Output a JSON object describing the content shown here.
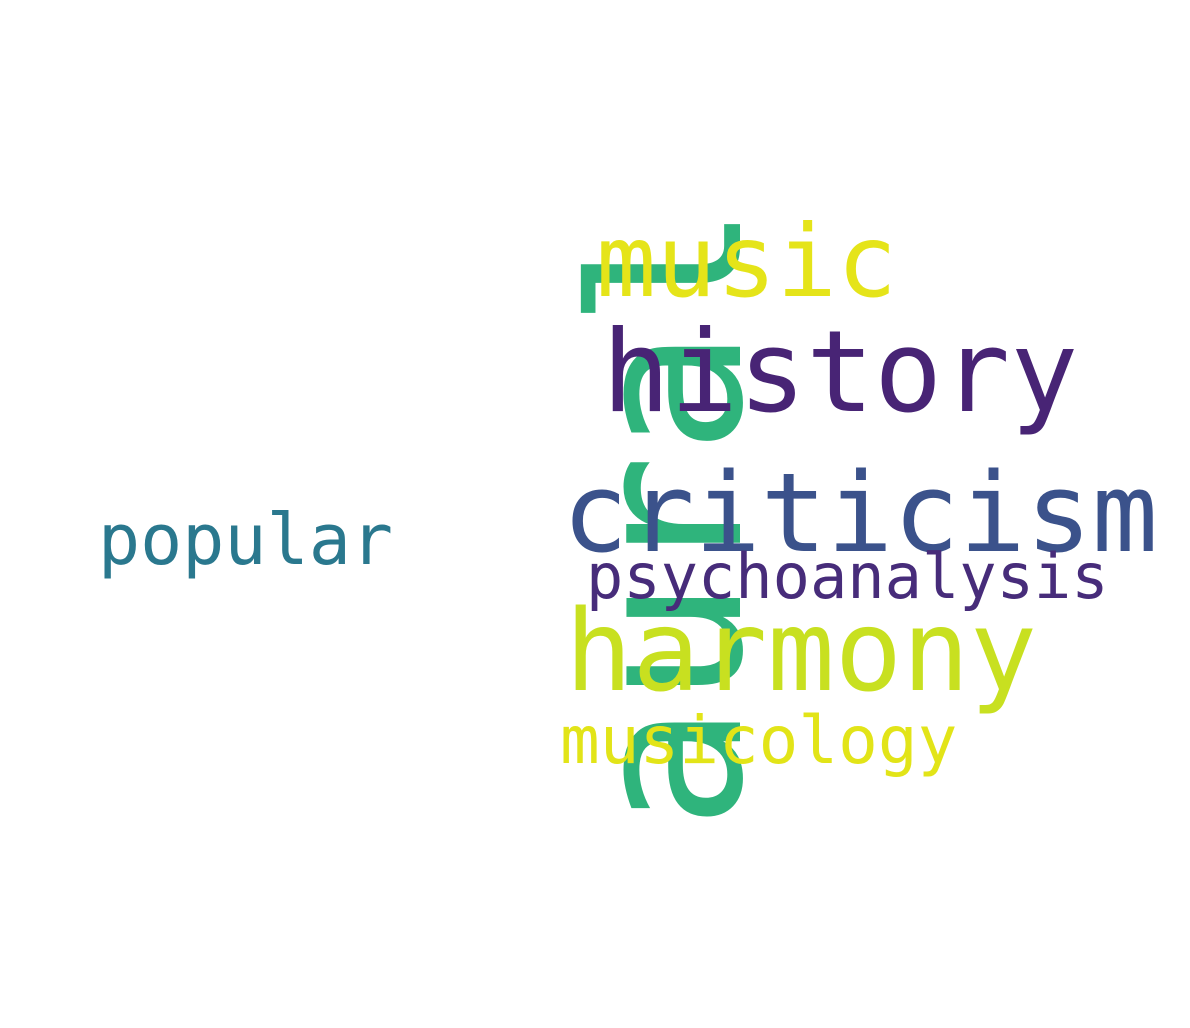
{
  "word_cloud": {
    "background": "#ffffff",
    "words": [
      {
        "text": "aural",
        "color": "#2fb47c",
        "orientation": "vertical"
      },
      {
        "text": "music",
        "color": "#e5e419",
        "orientation": "horizontal"
      },
      {
        "text": "history",
        "color": "#482475",
        "orientation": "horizontal"
      },
      {
        "text": "criticism",
        "color": "#3b528b",
        "orientation": "horizontal"
      },
      {
        "text": "popular",
        "color": "#2a788e",
        "orientation": "horizontal"
      },
      {
        "text": "psychoanalysis",
        "color": "#472c7a",
        "orientation": "horizontal"
      },
      {
        "text": "harmony",
        "color": "#c8e020",
        "orientation": "horizontal"
      },
      {
        "text": "musicology",
        "color": "#e2e418",
        "orientation": "horizontal"
      }
    ]
  }
}
